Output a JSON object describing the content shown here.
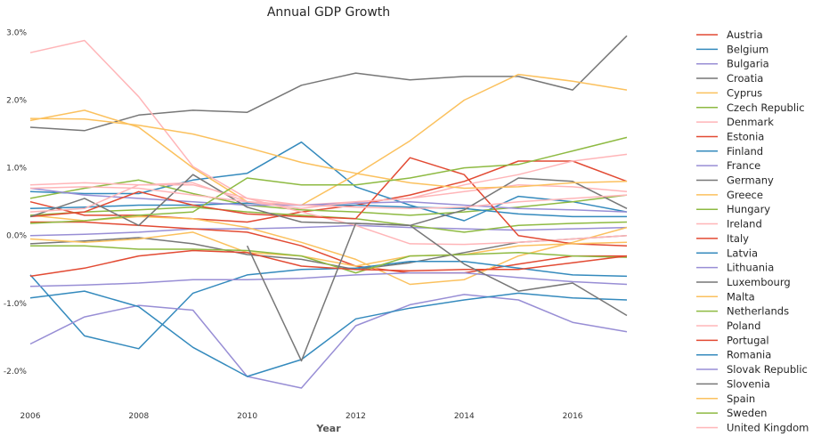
{
  "chart_data": {
    "type": "line",
    "title": "Annual GDP Growth",
    "xlabel": "Year",
    "ylabel": "",
    "x": [
      2006,
      2007,
      2008,
      2009,
      2010,
      2011,
      2012,
      2013,
      2014,
      2015,
      2016,
      2017
    ],
    "xlim": [
      2006,
      2017
    ],
    "ylim": [
      -2.5,
      3.15
    ],
    "xticks": [
      2006,
      2008,
      2010,
      2012,
      2014,
      2016
    ],
    "xtick_labels": [
      "2006",
      "2008",
      "2010",
      "2012",
      "2014",
      "2016"
    ],
    "yticks": [
      -2,
      -1,
      0,
      1,
      2,
      3
    ],
    "ytick_labels": [
      "-2.0%",
      "-1.0%",
      "0.0%",
      "1.0%",
      "2.0%",
      "3.0%"
    ],
    "grid": false,
    "legend_position": "right",
    "series": [
      {
        "name": "Austria",
        "color": "#e24a33",
        "values": [
          0.5,
          0.3,
          0.3,
          0.25,
          0.2,
          0.35,
          0.45,
          0.6,
          0.8,
          1.1,
          1.1,
          0.8
        ]
      },
      {
        "name": "Belgium",
        "color": "#348abd",
        "values": [
          0.65,
          0.62,
          0.62,
          0.82,
          0.92,
          1.38,
          0.72,
          0.45,
          0.22,
          0.58,
          0.5,
          0.35
        ]
      },
      {
        "name": "Bulgaria",
        "color": "#988ed5",
        "values": [
          0.0,
          0.02,
          0.05,
          0.1,
          0.1,
          0.12,
          0.15,
          0.12,
          0.1,
          0.08,
          0.1,
          0.12
        ]
      },
      {
        "name": "Croatia",
        "color": "#777777",
        "values": [
          1.6,
          1.55,
          1.78,
          1.85,
          1.82,
          2.22,
          2.4,
          2.3,
          2.35,
          2.35,
          2.15,
          2.95
        ]
      },
      {
        "name": "Cyprus",
        "color": "#fbc15e",
        "values": [
          1.7,
          1.85,
          1.6,
          1.0,
          0.5,
          0.45,
          0.9,
          1.4,
          2.0,
          2.38,
          2.28,
          2.15
        ]
      },
      {
        "name": "Czech Republic",
        "color": "#8eba42",
        "values": [
          0.55,
          0.7,
          0.82,
          0.62,
          0.45,
          0.38,
          0.35,
          0.3,
          0.35,
          0.42,
          0.5,
          0.6
        ]
      },
      {
        "name": "Denmark",
        "color": "#ffb5b8",
        "values": [
          0.75,
          0.78,
          0.75,
          0.75,
          0.55,
          0.45,
          0.5,
          0.55,
          0.65,
          0.75,
          0.72,
          0.65
        ]
      },
      {
        "name": "Estonia",
        "color": "#e24a33",
        "values": [
          0.2,
          0.2,
          0.15,
          0.1,
          0.05,
          -0.15,
          -0.45,
          -0.55,
          -0.55,
          -0.42,
          -0.3,
          -0.3
        ]
      },
      {
        "name": "Finland",
        "color": "#348abd",
        "values": [
          0.4,
          0.42,
          0.45,
          0.45,
          0.48,
          0.45,
          0.45,
          0.42,
          0.4,
          0.32,
          0.28,
          0.28
        ]
      },
      {
        "name": "France",
        "color": "#988ed5",
        "values": [
          0.7,
          0.6,
          0.55,
          0.5,
          0.45,
          0.45,
          0.48,
          0.5,
          0.45,
          0.4,
          0.38,
          0.35
        ]
      },
      {
        "name": "Germany",
        "color": "#777777",
        "values": [
          -0.12,
          -0.08,
          -0.03,
          -0.12,
          -0.28,
          -0.35,
          -0.5,
          -0.4,
          -0.25,
          -0.1,
          -0.05,
          0.0
        ]
      },
      {
        "name": "Greece",
        "color": "#fbc15e",
        "values": [
          0.3,
          0.22,
          0.28,
          0.25,
          0.12,
          -0.1,
          -0.35,
          -0.72,
          -0.65,
          -0.3,
          -0.1,
          0.12
        ]
      },
      {
        "name": "Hungary",
        "color": "#8eba42",
        "values": [
          0.3,
          0.35,
          0.38,
          0.42,
          0.35,
          0.3,
          0.25,
          0.15,
          0.05,
          0.15,
          0.18,
          0.2
        ]
      },
      {
        "name": "Ireland",
        "color": "#ffb5b8",
        "values": [
          2.7,
          2.88,
          2.05,
          1.02,
          0.55,
          0.35,
          0.15,
          -0.12,
          -0.13,
          -0.1,
          -0.05,
          0.0
        ]
      },
      {
        "name": "Italy",
        "color": "#e24a33",
        "values": [
          0.28,
          0.35,
          0.65,
          0.45,
          0.32,
          0.28,
          0.25,
          1.15,
          0.9,
          0.0,
          -0.12,
          -0.15
        ]
      },
      {
        "name": "Latvia",
        "color": "#348abd",
        "values": [
          -0.58,
          -1.48,
          -1.67,
          -0.85,
          -0.58,
          -0.5,
          -0.48,
          -0.38,
          -0.38,
          -0.48,
          -0.58,
          -0.6
        ]
      },
      {
        "name": "Lithuania",
        "color": "#988ed5",
        "values": [
          -1.6,
          -1.2,
          -1.03,
          -1.1,
          -2.08,
          -2.25,
          -1.33,
          -1.02,
          -0.87,
          -0.95,
          -1.28,
          -1.42
        ]
      },
      {
        "name": "Luxembourg",
        "color": "#777777",
        "values": [
          0.28,
          0.55,
          0.15,
          0.9,
          0.42,
          0.2,
          0.18,
          0.15,
          0.38,
          0.85,
          0.8,
          0.4
        ]
      },
      {
        "name": "Malta",
        "color": "#fbc15e",
        "values": [
          -0.05,
          -0.1,
          -0.05,
          0.05,
          -0.25,
          -0.3,
          -0.45,
          -0.3,
          -0.28,
          -0.15,
          -0.12,
          -0.1
        ]
      },
      {
        "name": "Netherlands",
        "color": "#8eba42",
        "values": [
          -0.15,
          -0.15,
          -0.2,
          -0.2,
          -0.22,
          -0.3,
          -0.55,
          -0.3,
          -0.28,
          -0.25,
          -0.3,
          -0.32
        ]
      },
      {
        "name": "Poland",
        "color": "#ffb5b8",
        "values": [
          0.35,
          0.4,
          0.75,
          0.78,
          0.5,
          0.4,
          0.5,
          0.55,
          0.75,
          0.9,
          1.1,
          1.2
        ]
      },
      {
        "name": "Portugal",
        "color": "#e24a33",
        "values": [
          -0.6,
          -0.48,
          -0.3,
          -0.22,
          -0.25,
          -0.45,
          -0.5,
          -0.52,
          -0.5,
          -0.5,
          -0.4,
          -0.3
        ]
      },
      {
        "name": "Romania",
        "color": "#348abd",
        "values": [
          -0.92,
          -0.82,
          -1.05,
          -1.65,
          -2.08,
          -1.83,
          -1.23,
          -1.07,
          -0.95,
          -0.85,
          -0.92,
          -0.95
        ]
      },
      {
        "name": "Slovak Republic",
        "color": "#988ed5",
        "values": [
          -0.75,
          -0.73,
          -0.7,
          -0.65,
          -0.65,
          -0.63,
          -0.58,
          -0.55,
          -0.55,
          -0.62,
          -0.68,
          -0.72
        ]
      },
      {
        "name": "Slovenia",
        "color": "#777777",
        "values": [
          null,
          null,
          null,
          null,
          -0.15,
          -1.85,
          0.18,
          0.15,
          -0.42,
          -0.82,
          -0.7,
          -1.18
        ]
      },
      {
        "name": "Spain",
        "color": "#fbc15e",
        "values": [
          1.73,
          1.72,
          1.63,
          1.5,
          1.3,
          1.08,
          0.92,
          0.78,
          0.7,
          0.72,
          0.78,
          0.8
        ]
      },
      {
        "name": "Sweden",
        "color": "#8eba42",
        "values": [
          0.18,
          0.22,
          0.3,
          0.35,
          0.85,
          0.75,
          0.75,
          0.85,
          1.0,
          1.05,
          1.25,
          1.45
        ]
      },
      {
        "name": "United Kingdom",
        "color": "#ffb5b8",
        "values": [
          0.7,
          0.72,
          0.7,
          0.6,
          0.5,
          0.45,
          0.42,
          0.4,
          0.42,
          0.5,
          0.55,
          0.6
        ]
      }
    ]
  }
}
